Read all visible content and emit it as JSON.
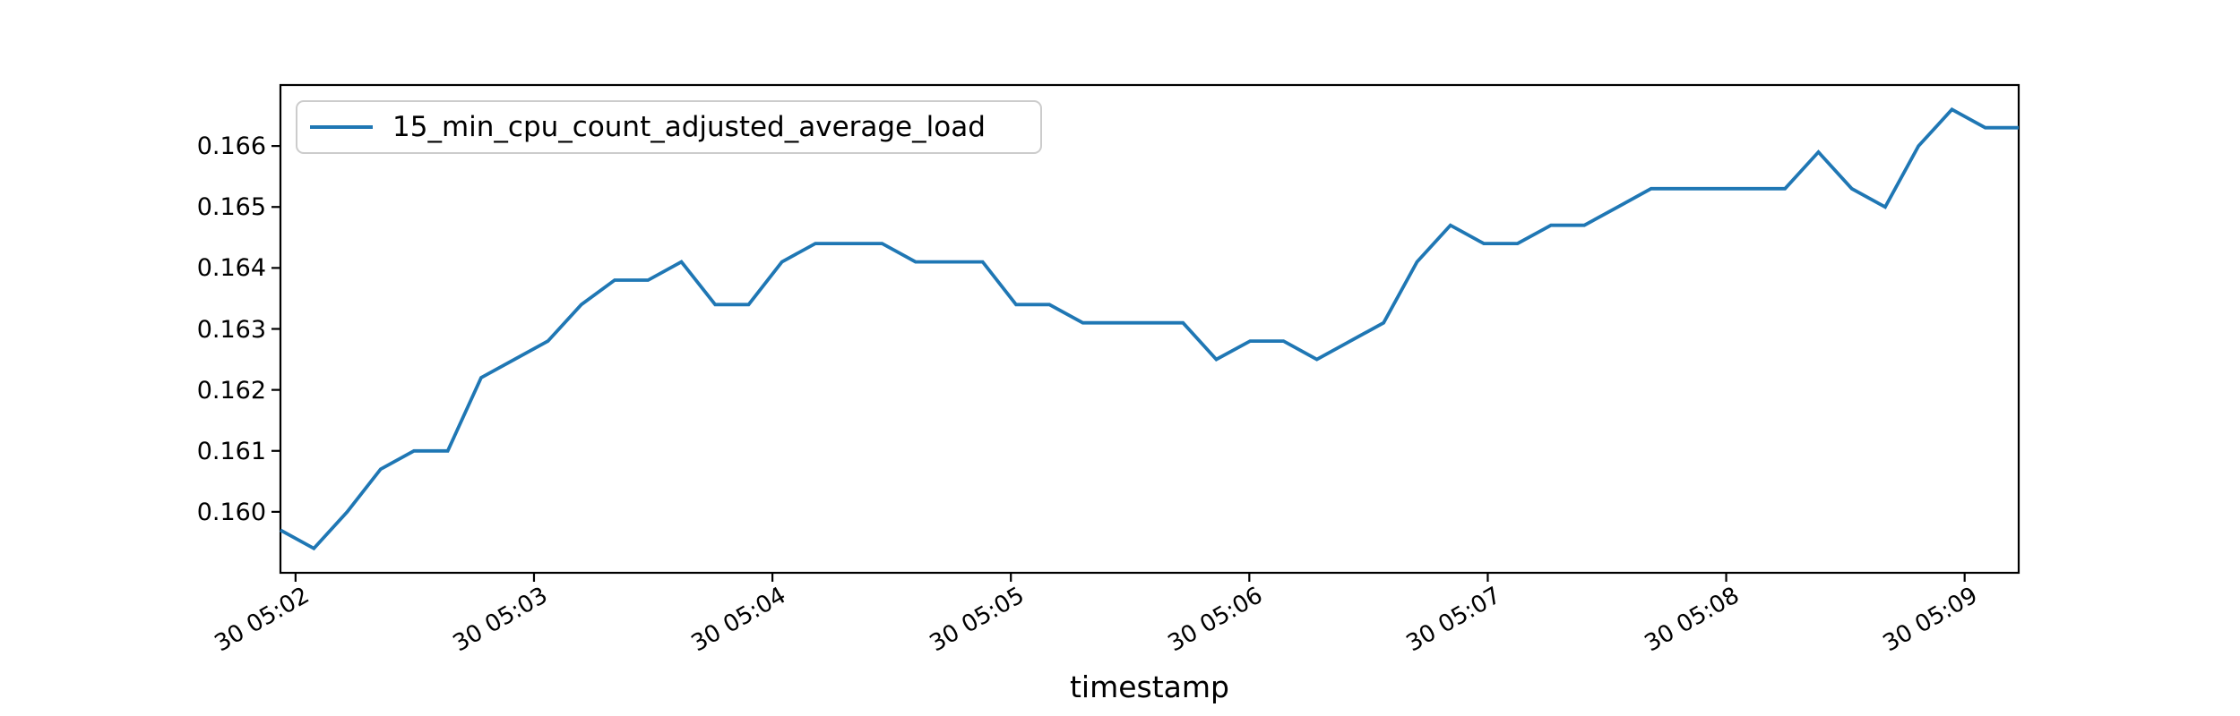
{
  "figure": {
    "background": "#ffffff",
    "axes_edge_color": "#000000",
    "tick_color": "#000000"
  },
  "chart_data": {
    "type": "line",
    "title": "",
    "xlabel": "timestamp",
    "ylabel": "",
    "grid": false,
    "legend": {
      "position": "upper left",
      "label": "15_min_cpu_count_adjusted_average_load",
      "line_color": "#1f77b4"
    },
    "series_name": "15_min_cpu_count_adjusted_average_load",
    "line_color": "#1f77b4",
    "x_unit": "seconds relative to tick '30 05:02'",
    "x_s": [
      -3.8,
      4.6,
      13.0,
      21.4,
      29.8,
      38.3,
      46.7,
      55.1,
      63.5,
      71.9,
      80.3,
      88.7,
      97.1,
      105.6,
      114.0,
      122.4,
      130.8,
      139.2,
      147.6,
      156.0,
      164.4,
      172.9,
      181.3,
      189.7,
      198.1,
      206.5,
      214.9,
      223.3,
      231.7,
      240.2,
      248.6,
      257.0,
      265.4,
      273.8,
      282.2,
      290.6,
      299.0,
      307.5,
      315.9,
      324.3,
      332.7,
      341.1,
      349.5,
      357.9,
      366.3,
      374.8,
      383.2,
      391.6,
      400.0,
      408.4,
      416.8,
      425.2,
      433.6
    ],
    "y": [
      0.1597,
      0.1594,
      0.16,
      0.1607,
      0.161,
      0.161,
      0.1622,
      0.1625,
      0.1628,
      0.1634,
      0.1638,
      0.1638,
      0.1641,
      0.1634,
      0.1634,
      0.1641,
      0.1644,
      0.1644,
      0.1644,
      0.1641,
      0.1641,
      0.1641,
      0.1634,
      0.1634,
      0.1631,
      0.1631,
      0.1631,
      0.1631,
      0.1625,
      0.1628,
      0.1628,
      0.1625,
      0.1628,
      0.1631,
      0.1641,
      0.1647,
      0.1644,
      0.1644,
      0.1647,
      0.1647,
      0.165,
      0.1653,
      0.1653,
      0.1653,
      0.1653,
      0.1653,
      0.1659,
      0.1653,
      0.165,
      0.166,
      0.1666,
      0.1663,
      0.1663
    ],
    "xlim_s": [
      -3.8,
      433.6
    ],
    "ylim": [
      0.159,
      0.167
    ],
    "xticks_s": [
      0,
      60,
      120,
      180,
      240,
      300,
      360,
      420
    ],
    "xtick_labels": [
      "30 05:02",
      "30 05:03",
      "30 05:04",
      "30 05:05",
      "30 05:06",
      "30 05:07",
      "30 05:08",
      "30 05:09"
    ],
    "xtick_rotation_deg": 30,
    "yticks": [
      0.16,
      0.161,
      0.162,
      0.163,
      0.164,
      0.165,
      0.166
    ],
    "ytick_labels": [
      "0.160",
      "0.161",
      "0.162",
      "0.163",
      "0.164",
      "0.165",
      "0.166"
    ]
  }
}
